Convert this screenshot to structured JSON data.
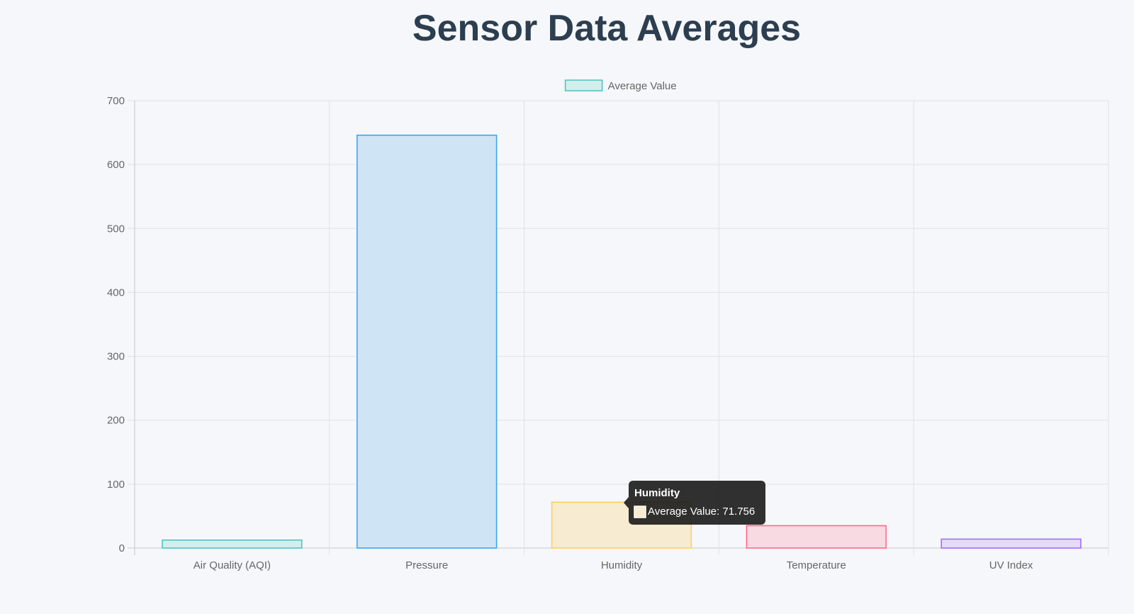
{
  "title": "Sensor Data Averages",
  "chart_data": {
    "type": "bar",
    "categories": [
      "Air Quality (AQI)",
      "Pressure",
      "Humidity",
      "Temperature",
      "UV Index"
    ],
    "series": [
      {
        "name": "Average Value",
        "values": [
          12.5,
          646,
          71.756,
          35,
          14
        ],
        "fill_colors": [
          "#d2eeed",
          "#cfe4f4",
          "#f7ebd2",
          "#f8dae2",
          "#e4dbf8"
        ],
        "border_colors": [
          "#4bc0c0",
          "#36a2eb",
          "#ffce56",
          "#ff6384",
          "#9966ff"
        ]
      }
    ],
    "ylim": [
      0,
      700
    ],
    "yticks": [
      0,
      100,
      200,
      300,
      400,
      500,
      600,
      700
    ],
    "grid": true,
    "legend": "top-center",
    "legend_fill": "#d2eeed",
    "legend_border": "#4bc0c0",
    "tooltip": {
      "category_index": 2,
      "title": "Humidity",
      "body": "Average Value: 71.756",
      "swatch_color": "#f7ebd2",
      "swatch_border": "#ffffff"
    }
  }
}
